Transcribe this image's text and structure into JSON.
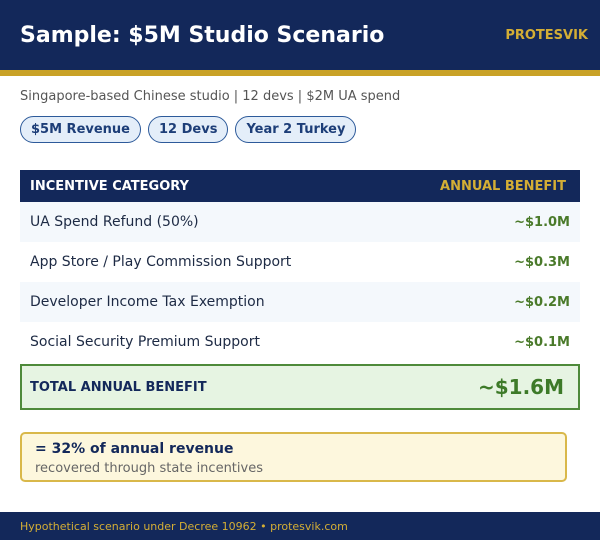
{
  "header": {
    "title": "Sample: $5M Studio Scenario",
    "brand": "PROTESVIK"
  },
  "subtitle": "Singapore-based Chinese studio | 12 devs | $2M UA spend",
  "tags": [
    "$5M Revenue",
    "12 Devs",
    "Year 2 Turkey"
  ],
  "table": {
    "columns": [
      "INCENTIVE CATEGORY",
      "ANNUAL BENEFIT"
    ],
    "rows": [
      [
        "UA Spend Refund (50%)",
        "~$1.0M"
      ],
      [
        "App Store / Play Commission Support",
        "~$0.3M"
      ],
      [
        "Developer Income Tax Exemption",
        "~$0.2M"
      ],
      [
        "Social Security Premium Support",
        "~$0.1M"
      ]
    ],
    "total": [
      "TOTAL ANNUAL BENEFIT",
      "~$1.6M"
    ]
  },
  "note": {
    "headline": "= 32% of annual revenue",
    "text": "recovered through state incentives"
  },
  "footer": "Hypothetical scenario under Decree 10962 • protesvik.com"
}
